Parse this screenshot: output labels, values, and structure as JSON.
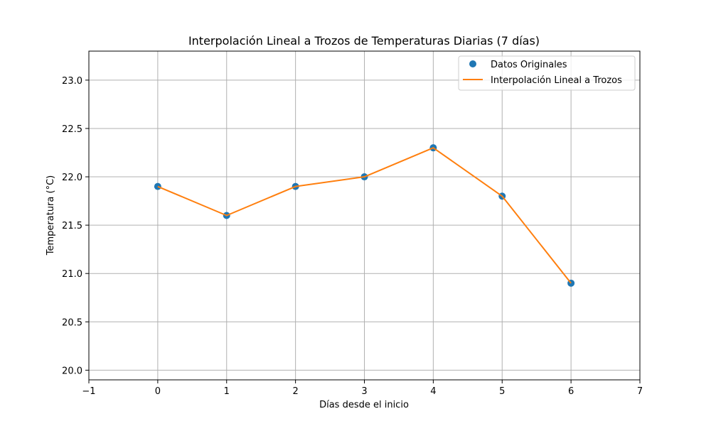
{
  "chart_data": {
    "type": "line",
    "title": "Interpolación Lineal a Trozos de Temperaturas Diarias (7 días)",
    "xlabel": "Días desde el inicio",
    "ylabel": "Temperatura (°C)",
    "xlim": [
      -1,
      7
    ],
    "ylim": [
      19.9,
      23.3
    ],
    "xticks": [
      -1,
      0,
      1,
      2,
      3,
      4,
      5,
      6,
      7
    ],
    "xtick_labels": [
      "−1",
      "0",
      "1",
      "2",
      "3",
      "4",
      "5",
      "6",
      "7"
    ],
    "yticks": [
      20.0,
      20.5,
      21.0,
      21.5,
      22.0,
      22.5,
      23.0
    ],
    "ytick_labels": [
      "20.0",
      "20.5",
      "21.0",
      "21.5",
      "22.0",
      "22.5",
      "23.0"
    ],
    "grid": true,
    "legend_position": "top-right",
    "x": [
      0,
      1,
      2,
      3,
      4,
      5,
      6
    ],
    "series": [
      {
        "name": "Datos Originales",
        "kind": "scatter",
        "color": "#1f77b4",
        "values": [
          21.9,
          21.6,
          21.9,
          22.0,
          22.3,
          21.8,
          20.9
        ]
      },
      {
        "name": "Interpolación Lineal a Trozos",
        "kind": "line",
        "color": "#ff7f0e",
        "values": [
          21.9,
          21.6,
          21.9,
          22.0,
          22.3,
          21.8,
          20.9
        ]
      }
    ]
  }
}
